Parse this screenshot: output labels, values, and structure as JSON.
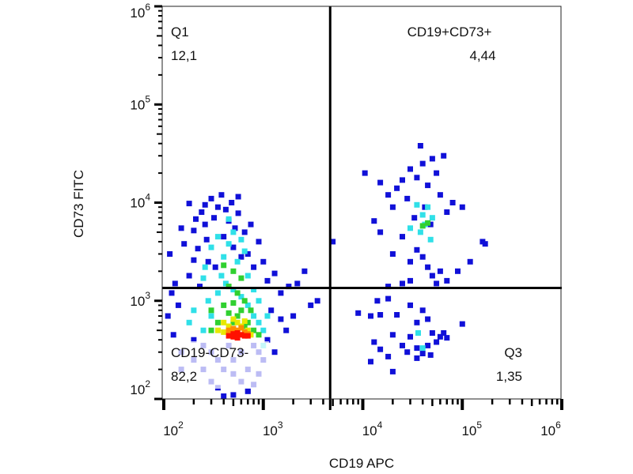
{
  "chart_data": {
    "type": "scatter",
    "title": "",
    "xlabel": "CD19 APC",
    "ylabel": "CD73 FITC",
    "xscale": "log",
    "yscale": "log",
    "xlim": [
      100,
      1000000
    ],
    "ylim": [
      100,
      1000000
    ],
    "grid": false,
    "x_ticks": [
      {
        "base": "10",
        "exp": "2",
        "value": 100
      },
      {
        "base": "10",
        "exp": "3",
        "value": 1000
      },
      {
        "base": "10",
        "exp": "4",
        "value": 10000
      },
      {
        "base": "10",
        "exp": "5",
        "value": 100000
      },
      {
        "base": "10",
        "exp": "6",
        "value": 1000000
      }
    ],
    "y_ticks": [
      {
        "base": "10",
        "exp": "2",
        "value": 100
      },
      {
        "base": "10",
        "exp": "3",
        "value": 1000
      },
      {
        "base": "10",
        "exp": "4",
        "value": 10000
      },
      {
        "base": "10",
        "exp": "5",
        "value": 100000
      },
      {
        "base": "10",
        "exp": "6",
        "value": 1000000
      }
    ],
    "gates": {
      "x_threshold": 4700,
      "y_threshold": 1350
    },
    "quadrants": [
      {
        "id": "upper-left",
        "name": "Q1",
        "value": "12,1"
      },
      {
        "id": "upper-right",
        "name": "CD19+CD73+",
        "value": "4,44"
      },
      {
        "id": "lower-left",
        "name": "CD19-CD73-",
        "value": "82,2"
      },
      {
        "id": "lower-right",
        "name": "Q3",
        "value": "1,35"
      }
    ],
    "density_colors": [
      "#1010d8",
      "#30e0e8",
      "#30d030",
      "#e8e800",
      "#ff8c00",
      "#ff1000"
    ],
    "points": [
      [
        115,
        3000,
        0
      ],
      [
        130,
        1500,
        0
      ],
      [
        150,
        5500,
        0
      ],
      [
        180,
        9800,
        0
      ],
      [
        200,
        5200,
        0
      ],
      [
        220,
        3400,
        0
      ],
      [
        240,
        8000,
        0
      ],
      [
        260,
        6000,
        0
      ],
      [
        280,
        2500,
        0
      ],
      [
        300,
        11000,
        0
      ],
      [
        320,
        7000,
        0
      ],
      [
        350,
        9000,
        0
      ],
      [
        380,
        12000,
        0
      ],
      [
        400,
        4500,
        0
      ],
      [
        420,
        8500,
        0
      ],
      [
        450,
        6500,
        0
      ],
      [
        480,
        10000,
        0
      ],
      [
        500,
        3500,
        0
      ],
      [
        520,
        5500,
        0
      ],
      [
        560,
        7800,
        0
      ],
      [
        600,
        2800,
        0
      ],
      [
        650,
        5000,
        0
      ],
      [
        700,
        3000,
        0
      ],
      [
        750,
        6000,
        0
      ],
      [
        800,
        2200,
        0
      ],
      [
        900,
        4000,
        0
      ],
      [
        1000,
        2500,
        0
      ],
      [
        1100,
        1600,
        0
      ],
      [
        1300,
        1900,
        0
      ],
      [
        1500,
        1200,
        0
      ],
      [
        1800,
        1400,
        0
      ],
      [
        2200,
        1500,
        0
      ],
      [
        2600,
        2000,
        0
      ],
      [
        3000,
        900,
        0
      ],
      [
        3500,
        1000,
        0
      ],
      [
        1200,
        800,
        0
      ],
      [
        1500,
        650,
        0
      ],
      [
        1700,
        500,
        0
      ],
      [
        2000,
        700,
        0
      ],
      [
        1100,
        400,
        0
      ],
      [
        1300,
        300,
        0
      ],
      [
        1000,
        250,
        0
      ],
      [
        900,
        180,
        0
      ],
      [
        800,
        140,
        0
      ],
      [
        700,
        120,
        0
      ],
      [
        400,
        100,
        0
      ],
      [
        500,
        110,
        0
      ],
      [
        120,
        1200,
        0
      ],
      [
        110,
        700,
        0
      ],
      [
        125,
        450,
        0
      ],
      [
        140,
        900,
        0
      ],
      [
        180,
        1800,
        0
      ],
      [
        200,
        2600,
        0
      ],
      [
        230,
        1400,
        0
      ],
      [
        270,
        4200,
        0
      ],
      [
        330,
        2200,
        0
      ],
      [
        160,
        3800,
        0
      ],
      [
        210,
        6800,
        0
      ],
      [
        260,
        9500,
        0
      ],
      [
        560,
        11500,
        0
      ],
      [
        150,
        300,
        0
      ],
      [
        200,
        250,
        0
      ],
      [
        250,
        200,
        0
      ],
      [
        300,
        150,
        0
      ],
      [
        350,
        130,
        0
      ],
      [
        400,
        200,
        0
      ],
      [
        500,
        250,
        0
      ],
      [
        600,
        300,
        0
      ],
      [
        700,
        200,
        0
      ],
      [
        800,
        350,
        0
      ],
      [
        150,
        200,
        0
      ],
      [
        200,
        400,
        0
      ],
      [
        300,
        300,
        0
      ],
      [
        450,
        350,
        0
      ],
      [
        600,
        150,
        0
      ],
      [
        900,
        300,
        0
      ],
      [
        250,
        350,
        0
      ],
      [
        350,
        250,
        0
      ],
      [
        500,
        180,
        0
      ],
      [
        700,
        120,
        0
      ],
      [
        300,
        3500,
        1
      ],
      [
        350,
        4500,
        1
      ],
      [
        400,
        2800,
        1
      ],
      [
        450,
        3800,
        1
      ],
      [
        500,
        5000,
        1
      ],
      [
        550,
        2500,
        1
      ],
      [
        600,
        4200,
        1
      ],
      [
        650,
        3200,
        1
      ],
      [
        380,
        1800,
        1
      ],
      [
        420,
        1500,
        1
      ],
      [
        500,
        1300,
        1
      ],
      [
        600,
        1100,
        1
      ],
      [
        700,
        900,
        1
      ],
      [
        800,
        700,
        1
      ],
      [
        900,
        600,
        1
      ],
      [
        1000,
        500,
        1
      ],
      [
        250,
        1700,
        1
      ],
      [
        280,
        1000,
        1
      ],
      [
        300,
        700,
        1
      ],
      [
        350,
        1200,
        1
      ],
      [
        260,
        2200,
        1
      ],
      [
        700,
        1800,
        1
      ],
      [
        800,
        1300,
        1
      ],
      [
        900,
        1000,
        1
      ],
      [
        1100,
        700,
        1
      ],
      [
        450,
        6800,
        1
      ],
      [
        250,
        500,
        1
      ],
      [
        200,
        800,
        1
      ],
      [
        180,
        600,
        1
      ],
      [
        1000,
        350,
        1
      ],
      [
        400,
        2300,
        2
      ],
      [
        500,
        2000,
        2
      ],
      [
        600,
        1700,
        2
      ],
      [
        450,
        1400,
        2
      ],
      [
        550,
        1200,
        2
      ],
      [
        650,
        1000,
        2
      ],
      [
        400,
        900,
        2
      ],
      [
        300,
        800,
        2
      ],
      [
        350,
        600,
        2
      ],
      [
        750,
        800,
        2
      ],
      [
        700,
        600,
        2
      ],
      [
        800,
        500,
        2
      ],
      [
        450,
        750,
        2
      ],
      [
        600,
        800,
        2
      ],
      [
        500,
        950,
        2
      ],
      [
        300,
        500,
        2
      ],
      [
        900,
        450,
        2
      ],
      [
        500,
        600,
        2
      ],
      [
        650,
        550,
        2
      ],
      [
        550,
        700,
        2
      ],
      [
        400,
        600,
        3
      ],
      [
        450,
        550,
        3
      ],
      [
        500,
        650,
        3
      ],
      [
        550,
        600,
        3
      ],
      [
        600,
        550,
        3
      ],
      [
        700,
        500,
        3
      ],
      [
        750,
        450,
        3
      ],
      [
        400,
        480,
        3
      ],
      [
        650,
        620,
        3
      ],
      [
        350,
        500,
        3
      ],
      [
        450,
        500,
        4
      ],
      [
        500,
        520,
        4
      ],
      [
        550,
        500,
        4
      ],
      [
        650,
        480,
        4
      ],
      [
        600,
        530,
        4
      ],
      [
        700,
        460,
        4
      ],
      [
        500,
        460,
        5
      ],
      [
        550,
        470,
        5
      ],
      [
        600,
        450,
        5
      ],
      [
        450,
        440,
        5
      ],
      [
        650,
        440,
        5
      ],
      [
        700,
        440,
        5
      ],
      [
        550,
        420,
        5
      ],
      [
        500,
        430,
        5
      ],
      [
        10500,
        20000,
        0
      ],
      [
        15000,
        16000,
        0
      ],
      [
        18000,
        12000,
        0
      ],
      [
        20000,
        9000,
        0
      ],
      [
        22000,
        14000,
        0
      ],
      [
        25000,
        17000,
        0
      ],
      [
        28000,
        11000,
        0
      ],
      [
        30000,
        22000,
        0
      ],
      [
        33000,
        7000,
        0
      ],
      [
        35000,
        18000,
        0
      ],
      [
        38000,
        38000,
        0
      ],
      [
        40000,
        25000,
        0
      ],
      [
        42000,
        9000,
        0
      ],
      [
        45000,
        15000,
        0
      ],
      [
        48000,
        6000,
        0
      ],
      [
        50000,
        28000,
        0
      ],
      [
        55000,
        20000,
        0
      ],
      [
        60000,
        12000,
        0
      ],
      [
        65000,
        30000,
        0
      ],
      [
        70000,
        8000,
        0
      ],
      [
        80000,
        10000,
        0
      ],
      [
        100000,
        9000,
        0
      ],
      [
        160000,
        4000,
        0
      ],
      [
        170000,
        3800,
        0
      ],
      [
        120000,
        2500,
        0
      ],
      [
        90000,
        2000,
        0
      ],
      [
        5000,
        4000,
        0
      ],
      [
        13000,
        6500,
        0
      ],
      [
        15000,
        5000,
        0
      ],
      [
        20000,
        3000,
        0
      ],
      [
        25000,
        4500,
        0
      ],
      [
        30000,
        2500,
        0
      ],
      [
        35000,
        3300,
        0
      ],
      [
        40000,
        2800,
        0
      ],
      [
        45000,
        2200,
        0
      ],
      [
        50000,
        1800,
        0
      ],
      [
        55000,
        1500,
        0
      ],
      [
        60000,
        2000,
        0
      ],
      [
        70000,
        1600,
        0
      ],
      [
        30000,
        1600,
        0
      ],
      [
        25000,
        1500,
        0
      ],
      [
        18000,
        1400,
        0
      ],
      [
        14000,
        1000,
        0
      ],
      [
        18000,
        1050,
        0
      ],
      [
        30000,
        900,
        0
      ],
      [
        40000,
        800,
        0
      ],
      [
        9000,
        750,
        0
      ],
      [
        12000,
        700,
        0
      ],
      [
        15000,
        720,
        0
      ],
      [
        22000,
        720,
        0
      ],
      [
        35000,
        600,
        0
      ],
      [
        45000,
        650,
        0
      ],
      [
        100000,
        580,
        0
      ],
      [
        20000,
        450,
        0
      ],
      [
        30000,
        430,
        0
      ],
      [
        50000,
        470,
        0
      ],
      [
        60000,
        430,
        0
      ],
      [
        70000,
        420,
        0
      ],
      [
        25000,
        350,
        0
      ],
      [
        35000,
        330,
        0
      ],
      [
        45000,
        350,
        0
      ],
      [
        55000,
        380,
        0
      ],
      [
        13000,
        380,
        0
      ],
      [
        15000,
        320,
        0
      ],
      [
        18000,
        270,
        0
      ],
      [
        28000,
        300,
        0
      ],
      [
        40000,
        290,
        0
      ],
      [
        48000,
        280,
        0
      ],
      [
        12000,
        240,
        0
      ],
      [
        20000,
        190,
        0
      ],
      [
        35000,
        260,
        0
      ],
      [
        65000,
        470,
        0
      ],
      [
        35000,
        9500,
        1
      ],
      [
        40000,
        7500,
        1
      ],
      [
        45000,
        9000,
        1
      ],
      [
        50000,
        7000,
        1
      ],
      [
        38000,
        5000,
        1
      ],
      [
        42000,
        6000,
        1
      ],
      [
        48000,
        4200,
        1
      ],
      [
        30000,
        5500,
        1
      ],
      [
        36000,
        470,
        1
      ],
      [
        40000,
        330,
        1
      ],
      [
        40000,
        5800,
        2
      ],
      [
        45000,
        6200,
        2
      ]
    ]
  }
}
